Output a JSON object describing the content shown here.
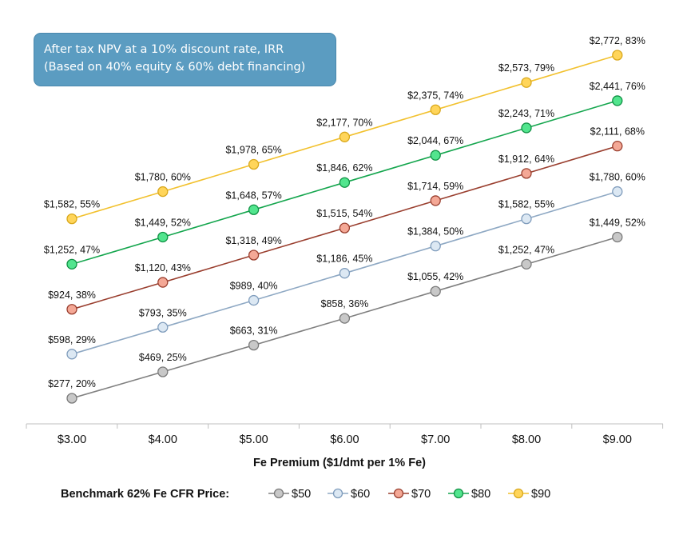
{
  "chart_data": {
    "type": "line",
    "title_lines": [
      "After tax NPV at a 10% discount rate, IRR",
      "(Based on 40% equity & 60% debt financing)"
    ],
    "xlabel": "Fe Premium ($1/dmt per 1% Fe)",
    "ylabel": "",
    "categories": [
      "$3.00",
      "$4.00",
      "$5.00",
      "$6.00",
      "$7.00",
      "$8.00",
      "$9.00"
    ],
    "legend_title": "Benchmark 62% Fe CFR Price:",
    "legend_position": "bottom",
    "grid": false,
    "series": [
      {
        "name": "$50",
        "line_color": "#808080",
        "marker_fill": "#c8c8c8",
        "marker_stroke": "#7a7a7a",
        "npv": [
          277,
          469,
          663,
          858,
          1055,
          1252,
          1449
        ],
        "irr": [
          20,
          25,
          31,
          36,
          42,
          47,
          52
        ],
        "labels": [
          "$277, 20%",
          "$469, 25%",
          "$663, 31%",
          "$858, 36%",
          "$1,055, 42%",
          "$1,252, 47%",
          "$1,449, 52%"
        ]
      },
      {
        "name": "$60",
        "line_color": "#8fa9c4",
        "marker_fill": "#dce8f3",
        "marker_stroke": "#7f9cbc",
        "npv": [
          598,
          793,
          989,
          1186,
          1384,
          1582,
          1780
        ],
        "irr": [
          29,
          35,
          40,
          45,
          50,
          55,
          60
        ],
        "labels": [
          "$598, 29%",
          "$793, 35%",
          "$989, 40%",
          "$1,186, 45%",
          "$1,384, 50%",
          "$1,582, 55%",
          "$1,780, 60%"
        ]
      },
      {
        "name": "$70",
        "line_color": "#9a3f2f",
        "marker_fill": "#f4a896",
        "marker_stroke": "#9a3f2f",
        "npv": [
          924,
          1120,
          1318,
          1515,
          1714,
          1912,
          2111
        ],
        "irr": [
          38,
          43,
          49,
          54,
          59,
          64,
          68
        ],
        "labels": [
          "$924, 38%",
          "$1,120, 43%",
          "$1,318, 49%",
          "$1,515, 54%",
          "$1,714, 59%",
          "$1,912, 64%",
          "$2,111, 68%"
        ]
      },
      {
        "name": "$80",
        "line_color": "#15a64e",
        "marker_fill": "#52e58e",
        "marker_stroke": "#109144",
        "npv": [
          1252,
          1449,
          1648,
          1846,
          2044,
          2243,
          2441
        ],
        "irr": [
          47,
          52,
          57,
          62,
          67,
          71,
          76
        ],
        "labels": [
          "$1,252, 47%",
          "$1,449, 52%",
          "$1,648, 57%",
          "$1,846, 62%",
          "$2,044, 67%",
          "$2,243, 71%",
          "$2,441, 76%"
        ]
      },
      {
        "name": "$90",
        "line_color": "#f2c12e",
        "marker_fill": "#ffd55a",
        "marker_stroke": "#d9a81c",
        "npv": [
          1582,
          1780,
          1978,
          2177,
          2375,
          2573,
          2772
        ],
        "irr": [
          55,
          60,
          65,
          70,
          74,
          79,
          83
        ],
        "labels": [
          "$1,582, 55%",
          "$1,780, 60%",
          "$1,978, 65%",
          "$2,177, 70%",
          "$2,375, 74%",
          "$2,573, 79%",
          "$2,772, 83%"
        ]
      }
    ]
  }
}
